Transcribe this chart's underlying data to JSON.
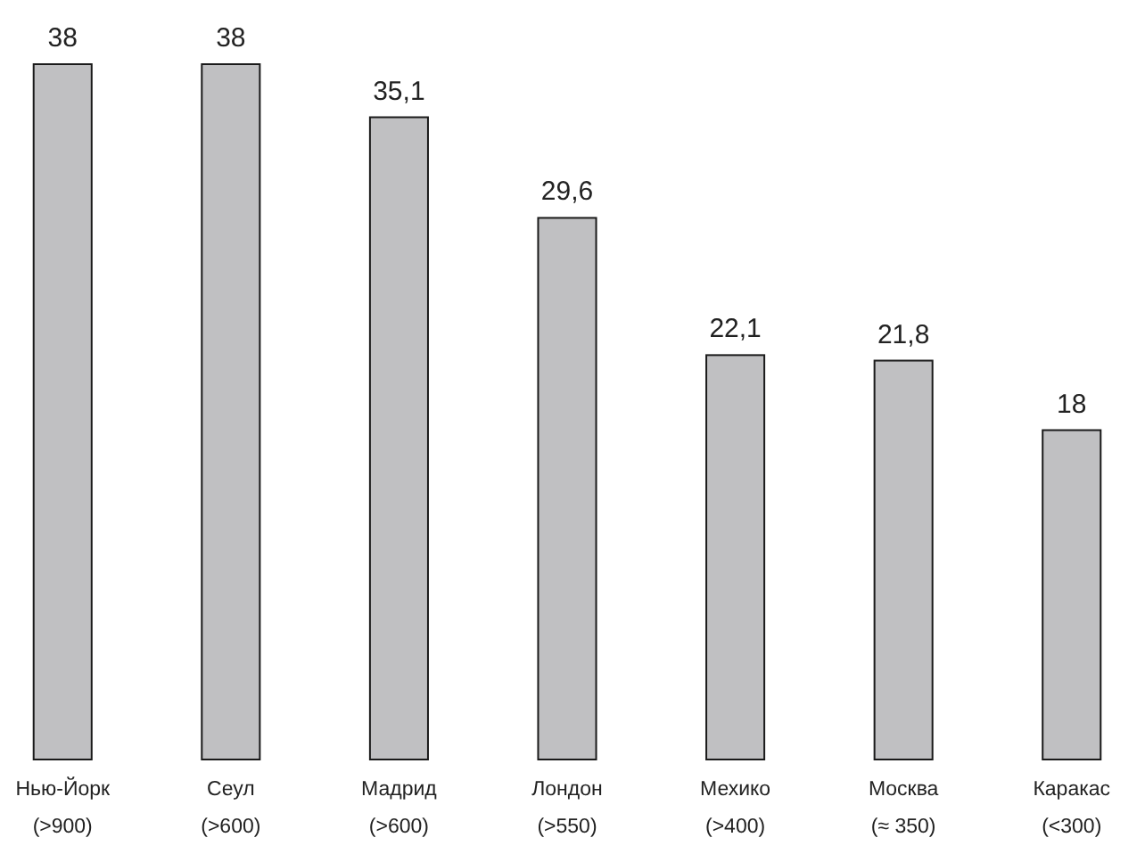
{
  "chart_data": {
    "type": "bar",
    "categories": [
      "Нью-Йорк\n(>900)",
      "Сеул\n(>600)",
      "Мадрид\n(>600)",
      "Лондон\n(>550)",
      "Мехико\n(>400)",
      "Москва\n(≈ 350)",
      "Каракас\n(<300)"
    ],
    "values": [
      38,
      38,
      35.1,
      29.6,
      22.1,
      21.8,
      18
    ],
    "value_labels": [
      "38",
      "38",
      "35,1",
      "29,6",
      "22,1",
      "21,8",
      "18"
    ],
    "color": "#c0c0c2"
  }
}
